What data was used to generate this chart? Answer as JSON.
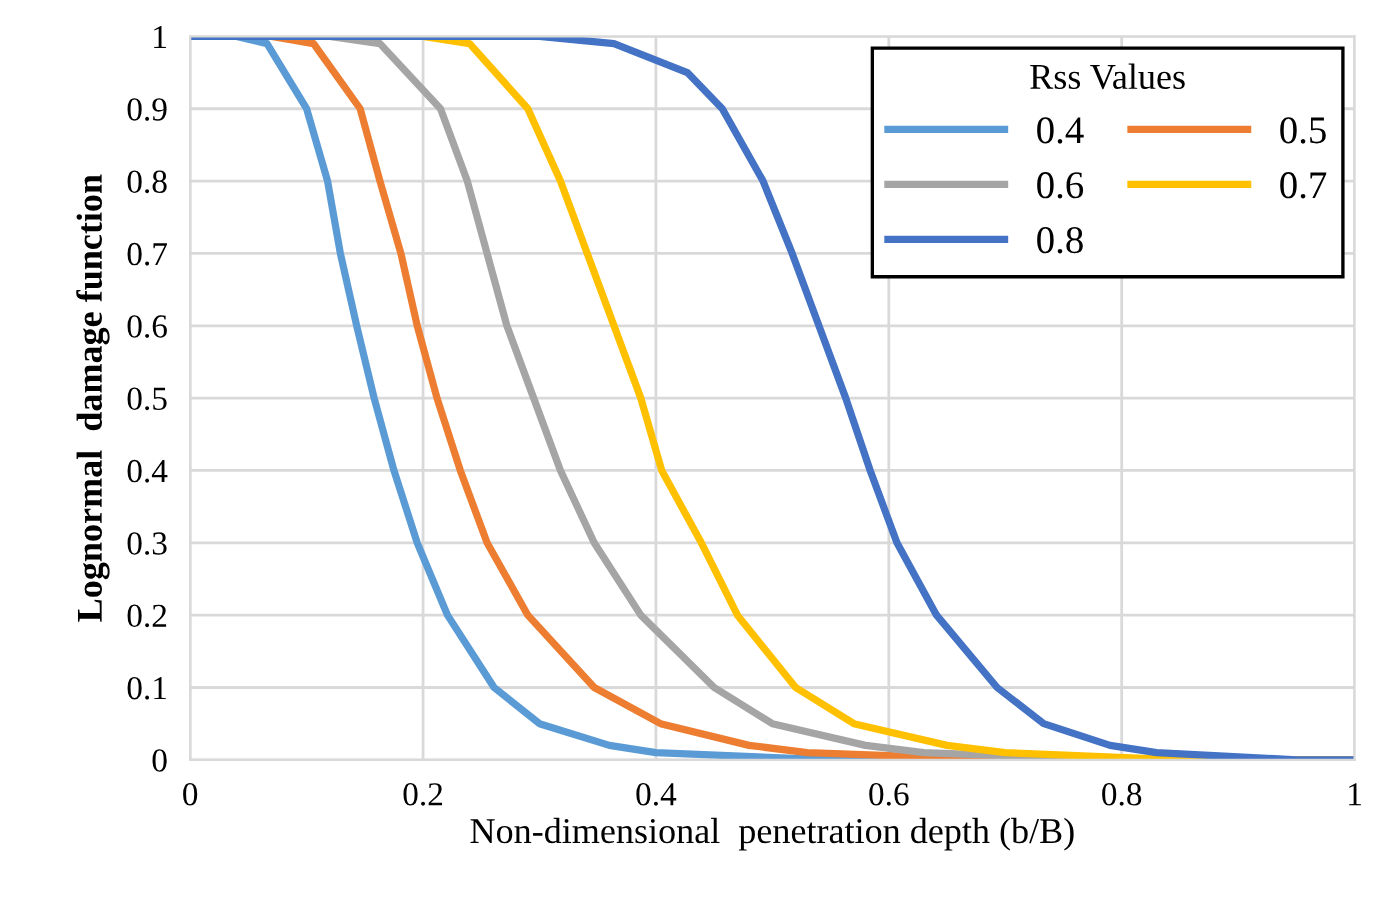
{
  "chart_data": {
    "type": "line",
    "xlabel": "Non-dimensional  penetration depth (b/B)",
    "ylabel": "Lognormal  damage function",
    "legend_title": "Rss Values",
    "legend": "top right",
    "grid": true,
    "marker": "none",
    "line_style": "solid",
    "xlim": [
      0,
      1
    ],
    "ylim": [
      0,
      1
    ],
    "xticks": [
      0,
      0.2,
      0.4,
      0.6,
      0.8,
      1
    ],
    "yticks": [
      0,
      0.1,
      0.2,
      0.3,
      0.4,
      0.5,
      0.6,
      0.7,
      0.8,
      0.9,
      1
    ],
    "series": [
      {
        "name": "0.4",
        "color": "#5b9bd5",
        "x": [
          0,
          0.04,
          0.066,
          0.1,
          0.118,
          0.129,
          0.143,
          0.158,
          0.175,
          0.195,
          0.221,
          0.261,
          0.3,
          0.36,
          0.4,
          0.55,
          1
        ],
        "values": [
          1,
          1,
          0.99,
          0.9,
          0.8,
          0.7,
          0.6,
          0.5,
          0.4,
          0.3,
          0.2,
          0.1,
          0.05,
          0.02,
          0.01,
          0,
          0
        ]
      },
      {
        "name": "0.5",
        "color": "#ed7d31",
        "x": [
          0.07,
          0.106,
          0.146,
          0.163,
          0.181,
          0.195,
          0.212,
          0.232,
          0.255,
          0.29,
          0.347,
          0.404,
          0.48,
          0.53,
          0.7,
          1
        ],
        "values": [
          1,
          0.99,
          0.9,
          0.8,
          0.7,
          0.6,
          0.5,
          0.4,
          0.3,
          0.2,
          0.1,
          0.05,
          0.02,
          0.01,
          0,
          0
        ]
      },
      {
        "name": "0.6",
        "color": "#a5a5a5",
        "x": [
          0,
          0.12,
          0.163,
          0.215,
          0.238,
          0.255,
          0.272,
          0.295,
          0.318,
          0.347,
          0.387,
          0.45,
          0.5,
          0.58,
          0.63,
          0.8,
          1
        ],
        "values": [
          1,
          1,
          0.99,
          0.9,
          0.8,
          0.7,
          0.6,
          0.5,
          0.4,
          0.3,
          0.2,
          0.1,
          0.05,
          0.02,
          0.01,
          0,
          0
        ]
      },
      {
        "name": "0.7",
        "color": "#ffc000",
        "x": [
          0.2,
          0.24,
          0.29,
          0.318,
          0.341,
          0.364,
          0.387,
          0.405,
          0.439,
          0.47,
          0.52,
          0.57,
          0.65,
          0.7,
          0.85,
          1
        ],
        "values": [
          1,
          0.99,
          0.9,
          0.8,
          0.7,
          0.6,
          0.5,
          0.4,
          0.3,
          0.2,
          0.1,
          0.05,
          0.02,
          0.01,
          0,
          0
        ]
      },
      {
        "name": "0.8",
        "color": "#4472c4",
        "x": [
          0,
          0.3,
          0.364,
          0.427,
          0.457,
          0.492,
          0.517,
          0.54,
          0.563,
          0.584,
          0.607,
          0.641,
          0.693,
          0.733,
          0.79,
          0.83,
          0.95,
          1
        ],
        "values": [
          1,
          1,
          0.99,
          0.95,
          0.9,
          0.8,
          0.7,
          0.6,
          0.5,
          0.4,
          0.3,
          0.2,
          0.1,
          0.05,
          0.02,
          0.01,
          0,
          0
        ]
      }
    ]
  }
}
